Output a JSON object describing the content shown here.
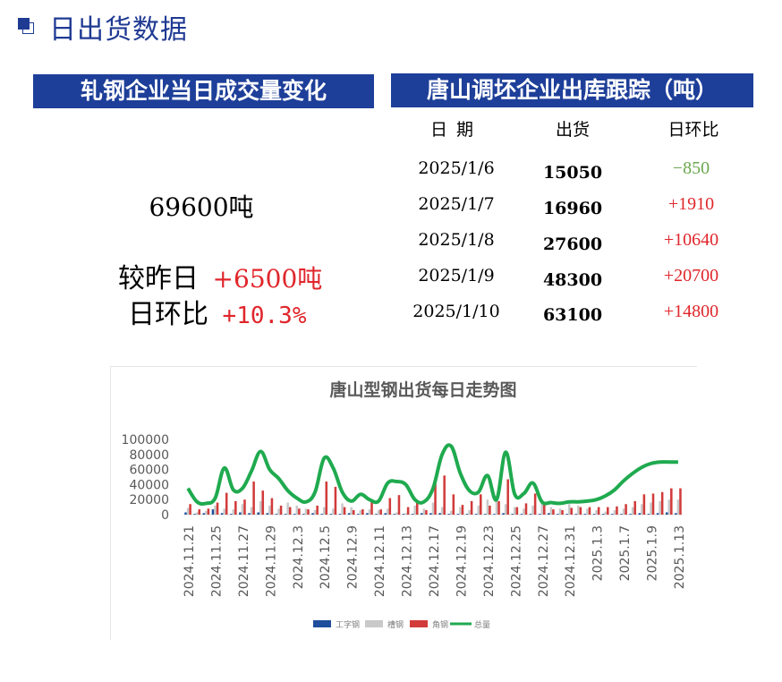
{
  "header": {
    "title": "日出货数据",
    "icon": "square-bullet-icon",
    "color": "#1f3a93"
  },
  "left_panel": {
    "banner": "轧钢企业当日成交量变化",
    "volume": "69600吨",
    "compare_label": "较昨日",
    "compare_value": "+6500吨",
    "ratio_label": "日环比",
    "ratio_value": "+10.3%"
  },
  "right_panel": {
    "banner": "唐山调坯企业出库跟踪（吨）",
    "headers": {
      "date": "日期",
      "shipment": "出货",
      "ratio": "日环比"
    },
    "rows": [
      {
        "date": "2025/1/6",
        "shipment": "15050",
        "ratio": "−850",
        "trend": "down"
      },
      {
        "date": "2025/1/7",
        "shipment": "16960",
        "ratio": "+1910",
        "trend": "up"
      },
      {
        "date": "2025/1/8",
        "shipment": "27600",
        "ratio": "+10640",
        "trend": "up"
      },
      {
        "date": "2025/1/9",
        "shipment": "48300",
        "ratio": "+20700",
        "trend": "up"
      },
      {
        "date": "2025/1/10",
        "shipment": "63100",
        "ratio": "+14800",
        "trend": "up"
      }
    ]
  },
  "chart_data": {
    "type": "bar",
    "title": "唐山型钢出货每日走势图",
    "ylim": [
      0,
      100000
    ],
    "yticks": [
      "100000",
      "80000",
      "60000",
      "40000",
      "20000",
      "0"
    ],
    "x_tick_labels": [
      "2024.11.21",
      "2024.11.25",
      "2024.11.27",
      "2024.11.29",
      "2024.12.3",
      "2024.12.5",
      "2024.12.9",
      "2024.12.11",
      "2024.12.13",
      "2024.12.17",
      "2024.12.19",
      "2024.12.23",
      "2024.12.25",
      "2024.12.27",
      "2024.12.31",
      "2025.1.3",
      "2025.1.7",
      "2025.1.9",
      "2025.1.13"
    ],
    "legend_position": "bottom",
    "grid": false,
    "series": [
      {
        "name": "工字钢",
        "color": "#1f4e9c",
        "kind": "bar",
        "values": [
          3000,
          1000,
          2000,
          7000,
          2000,
          1000,
          3000,
          2000,
          3000,
          2000,
          1000,
          1000,
          1000,
          1000,
          2000,
          1000,
          1000,
          1000,
          2000,
          1000,
          2000,
          1000,
          2000,
          1000,
          1000,
          1000,
          2000,
          2000,
          2000,
          1000,
          1000,
          1000,
          1000,
          1000,
          1000,
          2000,
          1000,
          1000,
          1000,
          1000,
          2000,
          1000,
          1000,
          1000,
          1000,
          1000,
          1000,
          1000,
          1000,
          1000,
          2000,
          1000,
          2000,
          3000,
          2000
        ]
      },
      {
        "name": "槽钢",
        "color": "#c9c9c9",
        "kind": "bar",
        "values": [
          9000,
          3000,
          5000,
          12000,
          8000,
          7000,
          14000,
          10000,
          18000,
          12000,
          8000,
          16000,
          12000,
          8000,
          6000,
          10000,
          8000,
          15000,
          10000,
          6000,
          7000,
          6000,
          8000,
          3000,
          2000,
          12000,
          8000,
          16000,
          10000,
          5000,
          10000,
          6000,
          12000,
          20000,
          25000,
          14000,
          10000,
          8000,
          12000,
          16000,
          10000,
          8000,
          14000,
          12000,
          8000,
          6000,
          4000,
          6000,
          8000,
          10000,
          14000,
          16000,
          18000,
          20000,
          20000
        ]
      },
      {
        "name": "角钢",
        "color": "#d23b3b",
        "kind": "bar",
        "values": [
          14000,
          7000,
          8000,
          16000,
          29000,
          18000,
          20000,
          44000,
          32000,
          22000,
          12000,
          10000,
          8000,
          7000,
          12000,
          44000,
          37000,
          10000,
          6000,
          7000,
          18000,
          7000,
          22000,
          26000,
          10000,
          16000,
          6000,
          45000,
          52000,
          27000,
          13000,
          18000,
          27000,
          12000,
          18000,
          47000,
          10000,
          15000,
          28000,
          13000,
          7000,
          6000,
          9000,
          10000,
          10000,
          10000,
          10000,
          11000,
          14000,
          18000,
          27000,
          28000,
          30000,
          35000,
          35000
        ]
      },
      {
        "name": "总量",
        "color": "#1faa4f",
        "kind": "line",
        "values": [
          35000,
          17000,
          15000,
          22000,
          62000,
          33000,
          35000,
          58000,
          84000,
          60000,
          48000,
          32000,
          22000,
          17000,
          30000,
          75000,
          62000,
          30000,
          18000,
          27000,
          20000,
          18000,
          42000,
          44000,
          40000,
          20000,
          17000,
          35000,
          80000,
          91000,
          55000,
          32000,
          30000,
          52000,
          20000,
          83000,
          27000,
          28000,
          42000,
          17000,
          16000,
          15000,
          17000,
          17000,
          18000,
          20000,
          25000,
          33000,
          45000,
          55000,
          63000,
          68000,
          70000,
          70000,
          70000
        ]
      }
    ]
  }
}
